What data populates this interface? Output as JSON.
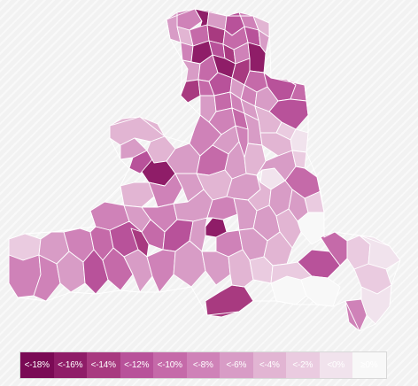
{
  "map": {
    "colors": {
      "c18": "#7a0a55",
      "c16": "#8f1d68",
      "c14": "#a83a80",
      "c12": "#b8529a",
      "c10": "#c56aa9",
      "c8": "#cf82b8",
      "c6": "#d89cc6",
      "c4": "#e2b5d3",
      "c2": "#eacbe0",
      "c0": "#f1e3ed",
      "cp": "#f8f8f8",
      "outline": "#ffffff"
    }
  },
  "legend": {
    "items": [
      {
        "label": "<-18%",
        "color": "#7a0a55"
      },
      {
        "label": "<-16%",
        "color": "#8f1d68"
      },
      {
        "label": "<-14%",
        "color": "#a83a80"
      },
      {
        "label": "<-12%",
        "color": "#b8529a"
      },
      {
        "label": "<-10%",
        "color": "#c56aa9"
      },
      {
        "label": "<-8%",
        "color": "#cf82b8"
      },
      {
        "label": "<-6%",
        "color": "#d89cc6"
      },
      {
        "label": "<-4%",
        "color": "#e2b5d3"
      },
      {
        "label": "<-2%",
        "color": "#eacbe0"
      },
      {
        "label": "<0%",
        "color": "#f1e3ed"
      },
      {
        "label": "≥0%",
        "color": "#f8f8f8"
      }
    ]
  }
}
